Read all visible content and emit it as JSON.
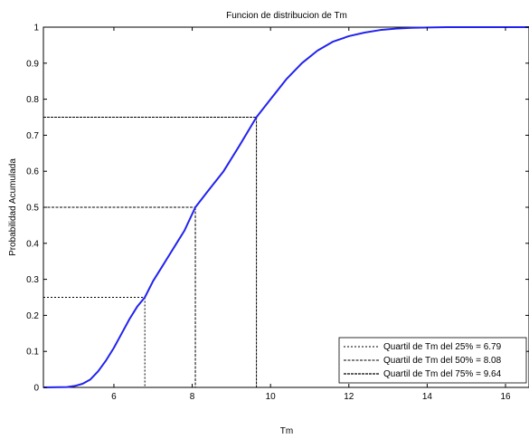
{
  "chart_data": {
    "type": "line",
    "title": "Funcion de distribucion de Tm",
    "xlabel": "Tm",
    "ylabel": "Probabilidad Acumulada",
    "xlim": [
      4.2,
      16.6
    ],
    "ylim": [
      0,
      1
    ],
    "xticks": [
      6,
      8,
      10,
      12,
      14,
      16
    ],
    "xtick_labels": [
      "6",
      "8",
      "10",
      "12",
      "14",
      "16"
    ],
    "yticks": [
      0,
      0.1,
      0.2,
      0.3,
      0.4,
      0.5,
      0.6,
      0.7,
      0.8,
      0.9,
      1
    ],
    "ytick_labels": [
      "0",
      "0.1",
      "0.2",
      "0.3",
      "0.4",
      "0.5",
      "0.6",
      "0.7",
      "0.8",
      "0.9",
      "1"
    ],
    "grid": false,
    "legend_position": "bottom-right",
    "series": [
      {
        "color": "#2222ee",
        "x": [
          4.2,
          4.8,
          5.0,
          5.2,
          5.4,
          5.6,
          5.8,
          6.0,
          6.2,
          6.4,
          6.6,
          6.79,
          7.0,
          7.2,
          7.4,
          7.6,
          7.8,
          8.08,
          8.4,
          8.8,
          9.2,
          9.64,
          10.0,
          10.4,
          10.8,
          11.2,
          11.6,
          12.0,
          12.4,
          12.8,
          13.2,
          13.6,
          14.0,
          14.5,
          15.0,
          16.6
        ],
        "y": [
          0.0,
          0.001,
          0.004,
          0.01,
          0.022,
          0.045,
          0.075,
          0.11,
          0.15,
          0.19,
          0.225,
          0.25,
          0.295,
          0.33,
          0.365,
          0.4,
          0.435,
          0.5,
          0.545,
          0.6,
          0.67,
          0.75,
          0.8,
          0.855,
          0.9,
          0.935,
          0.96,
          0.975,
          0.985,
          0.992,
          0.996,
          0.998,
          0.999,
          1.0,
          1.0,
          1.0
        ]
      }
    ],
    "quartiles": [
      {
        "label": "Quartil de Tm del 25% = 6.79",
        "x": 6.79,
        "p": 0.25,
        "dash": "2,2"
      },
      {
        "label": "Quartil de Tm del 50% = 8.08",
        "x": 8.08,
        "p": 0.5,
        "dash": "3,1.5"
      },
      {
        "label": "Quartil de Tm del 75% = 9.64",
        "x": 9.64,
        "p": 0.75,
        "dash": "3,1"
      }
    ],
    "colors": {
      "curve": "#2222ee",
      "quartile_lines": "#000000",
      "axes": "#000000"
    }
  }
}
